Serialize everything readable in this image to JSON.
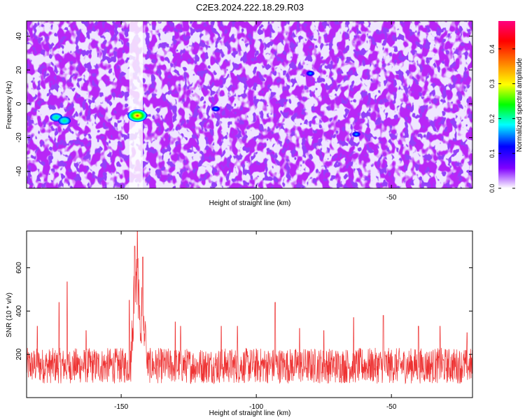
{
  "title": "C2E3.2024.222.18.29.R03",
  "chart_data": [
    {
      "type": "heatmap",
      "title": "C2E3.2024.222.18.29.R03",
      "xlabel": "Height of straight line (km)",
      "ylabel": "Frequency (Hz)",
      "xlim": [
        -185,
        -20
      ],
      "ylim": [
        -50,
        49
      ],
      "xticks": [
        -150,
        -100,
        -50
      ],
      "xtick_labels": [
        "-150",
        "-100",
        "-50"
      ],
      "yticks": [
        -40,
        -20,
        0,
        20,
        40
      ],
      "ytick_labels": [
        "-40",
        "-20",
        "0",
        "20",
        "40"
      ],
      "colorbar": {
        "label": "Normalized spectral amplitude",
        "range": [
          0,
          0.48
        ],
        "ticks": [
          0,
          0.1,
          0.2,
          0.3,
          0.4
        ],
        "tick_labels": [
          "0.0",
          "0.1",
          "0.2",
          "0.3",
          "0.4"
        ],
        "colors": [
          "#ffffff",
          "#8000ff",
          "#0000ff",
          "#00ffff",
          "#00ff00",
          "#ffff00",
          "#ff8000",
          "#ff0000",
          "#ff0080"
        ]
      },
      "background_level": "0.02-0.08 (speckled noise)",
      "quiet_band_x": [
        -147,
        -142
      ],
      "hotspots": [
        {
          "x": -144,
          "y": -7,
          "value": 0.45
        },
        {
          "x": -174,
          "y": -8,
          "value": 0.25
        },
        {
          "x": -171,
          "y": -10,
          "value": 0.18
        },
        {
          "x": -115,
          "y": -3,
          "value": 0.1
        },
        {
          "x": -80,
          "y": 18,
          "value": 0.1
        },
        {
          "x": -63,
          "y": -18,
          "value": 0.1
        }
      ]
    },
    {
      "type": "line",
      "xlabel": "Height of straight line (km)",
      "ylabel": "SNR (10 * v/v)",
      "xlim": [
        -185,
        -20
      ],
      "ylim": [
        0,
        770
      ],
      "xticks": [
        -150,
        -100,
        -50
      ],
      "xtick_labels": [
        "-150",
        "-100",
        "-50"
      ],
      "yticks": [
        200,
        400,
        600
      ],
      "ytick_labels": [
        "200",
        "400",
        "600"
      ],
      "color": "#ee3333",
      "noise_floor": {
        "low": 65,
        "high": 230
      },
      "peaks": [
        {
          "x": -144,
          "y": 770
        },
        {
          "x": -145,
          "y": 700
        },
        {
          "x": -142,
          "y": 650
        },
        {
          "x": -147,
          "y": 450
        },
        {
          "x": -170,
          "y": 535
        },
        {
          "x": -173,
          "y": 440
        },
        {
          "x": -181,
          "y": 330
        },
        {
          "x": -163,
          "y": 310
        },
        {
          "x": -130,
          "y": 350
        },
        {
          "x": -128,
          "y": 330
        },
        {
          "x": -113,
          "y": 330
        },
        {
          "x": -107,
          "y": 330
        },
        {
          "x": -93,
          "y": 440
        },
        {
          "x": -84,
          "y": 320
        },
        {
          "x": -75,
          "y": 310
        },
        {
          "x": -64,
          "y": 370
        },
        {
          "x": -53,
          "y": 380
        },
        {
          "x": -40,
          "y": 330
        },
        {
          "x": -32,
          "y": 330
        },
        {
          "x": -22,
          "y": 300
        }
      ]
    }
  ]
}
